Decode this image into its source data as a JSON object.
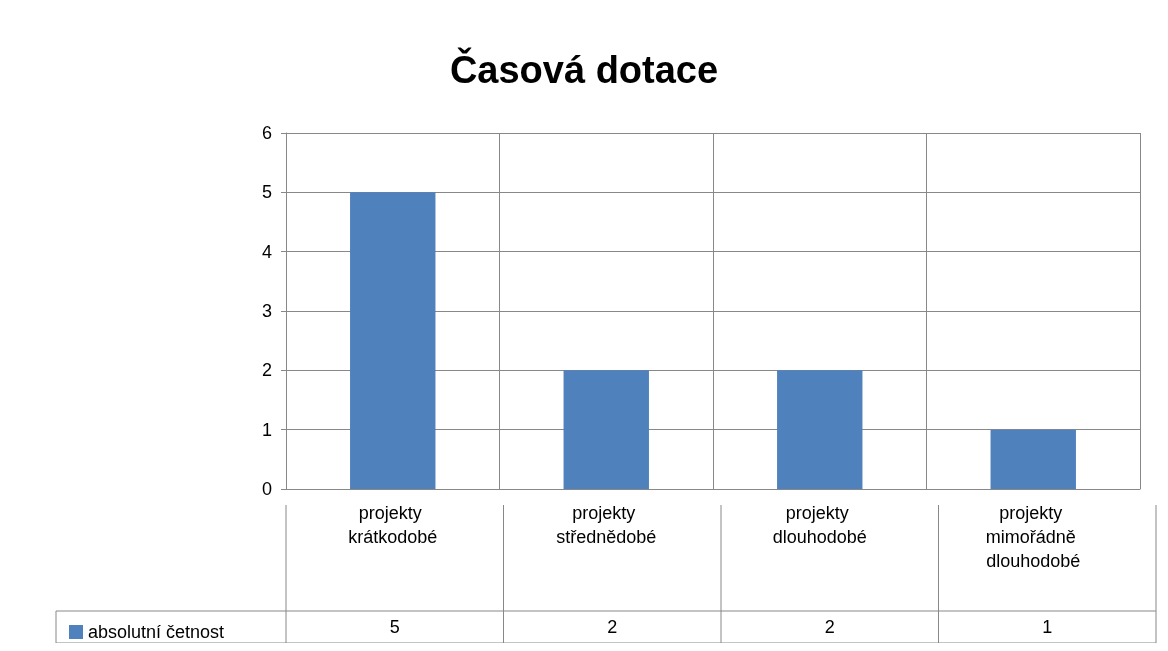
{
  "chart_data": {
    "type": "bar",
    "title": "Časová dotace",
    "categories": [
      "projekty krátkodobé",
      "projekty střednědobé",
      "projekty dlouhodobé",
      "projekty mimořádně dlouhodobé"
    ],
    "series": [
      {
        "name": "absolutní četnost",
        "color": "#4f81bd",
        "values": [
          5,
          2,
          2,
          1
        ]
      }
    ],
    "ylim": [
      0,
      6
    ],
    "yticks": [
      0,
      1,
      2,
      3,
      4,
      5,
      6
    ],
    "grid": true,
    "legend": "bottom left",
    "data_labels": true
  }
}
